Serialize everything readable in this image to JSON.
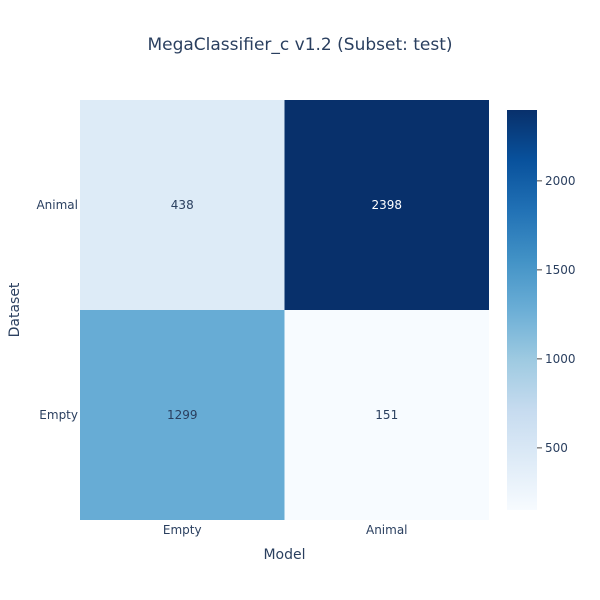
{
  "chart_data": {
    "type": "heatmap",
    "title": "MegaClassifier_c v1.2 (Subset: test)",
    "xlabel": "Model",
    "ylabel": "Dataset",
    "x_categories": [
      "Empty",
      "Animal"
    ],
    "y_categories": [
      "Animal",
      "Empty"
    ],
    "values": [
      [
        438,
        2398
      ],
      [
        1299,
        151
      ]
    ],
    "colorscale": "Blues",
    "zmin": 151,
    "zmax": 2398,
    "colorbar_ticks": [
      500,
      1000,
      1500,
      2000
    ],
    "legend": "right"
  },
  "colors": {
    "text_dark": "#2a3f5f",
    "text_light": "#ffffff",
    "scale": [
      "#f7fbff",
      "#deebf7",
      "#c6dbef",
      "#9ecae1",
      "#6baed6",
      "#4292c6",
      "#2171b5",
      "#08519c",
      "#08306b"
    ]
  }
}
